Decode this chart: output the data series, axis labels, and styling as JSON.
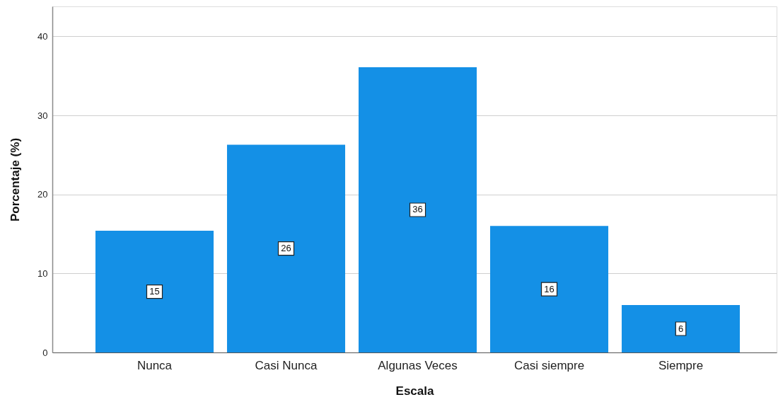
{
  "chart_data": {
    "type": "bar",
    "xlabel": "Escala",
    "ylabel": "Porcentaje (%)",
    "categories": [
      "Nunca",
      "Casi Nunca",
      "Algunas Veces",
      "Casi siempre",
      "Siempre"
    ],
    "values": [
      15.4,
      26.3,
      36.1,
      16.0,
      6.0
    ],
    "value_labels": [
      "15",
      "26",
      "36",
      "16",
      "6"
    ],
    "color": "#1490e6",
    "ylim": [
      0,
      43.8
    ],
    "yticks": [
      0,
      10,
      20,
      30,
      40
    ],
    "grid": "y"
  }
}
